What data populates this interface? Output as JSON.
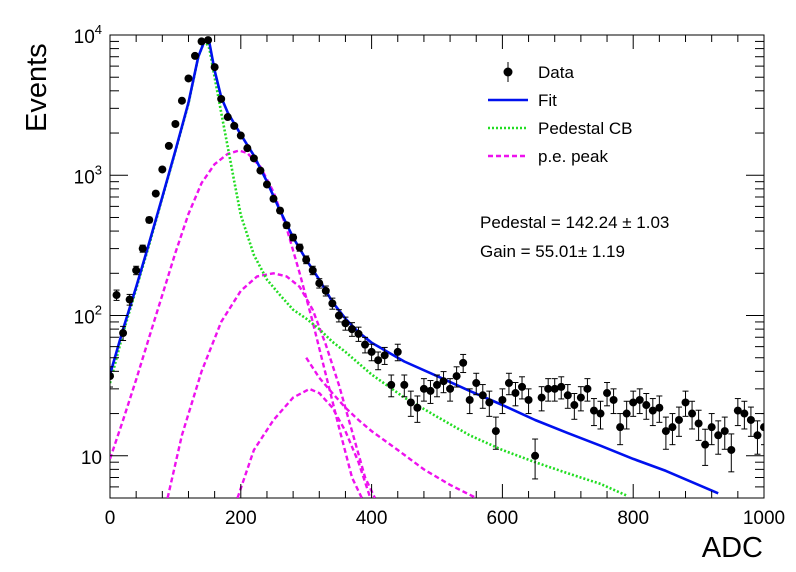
{
  "chart_data": {
    "type": "scatter",
    "title": "",
    "xlabel": "ADC",
    "ylabel": "Events",
    "xlim": [
      0,
      1000
    ],
    "ylim": [
      5,
      10000
    ],
    "y_scale": "log",
    "grid": false,
    "legend_position": "top-right",
    "x_ticks": [
      "0",
      "200",
      "400",
      "600",
      "800",
      "1000"
    ],
    "y_ticks": [
      {
        "value": 10,
        "mantissa": "10",
        "exponent": ""
      },
      {
        "value": 100,
        "mantissa": "10",
        "exponent": "2"
      },
      {
        "value": 1000,
        "mantissa": "10",
        "exponent": "3"
      },
      {
        "value": 10000,
        "mantissa": "10",
        "exponent": "4"
      }
    ],
    "legend": [
      {
        "label": "Data",
        "style": "marker",
        "color": "#000000"
      },
      {
        "label": "Fit",
        "style": "solid",
        "color": "#0011ee"
      },
      {
        "label": "Pedestal CB",
        "style": "dotted",
        "color": "#22dd22"
      },
      {
        "label": "p.e. peak",
        "style": "dashed",
        "color": "#ee11ee"
      }
    ],
    "annotations": [
      {
        "text": "Pedestal = 142.24 ± 1.03"
      },
      {
        "text": "Gain = 55.01± 1.19"
      }
    ],
    "series": [
      {
        "name": "Data",
        "kind": "points",
        "color": "#000000",
        "points": [
          [
            0,
            37
          ],
          [
            10,
            140
          ],
          [
            20,
            75
          ],
          [
            30,
            130
          ],
          [
            40,
            210
          ],
          [
            50,
            300
          ],
          [
            60,
            480
          ],
          [
            70,
            740
          ],
          [
            80,
            1100
          ],
          [
            90,
            1620
          ],
          [
            100,
            2320
          ],
          [
            110,
            3400
          ],
          [
            120,
            4900
          ],
          [
            130,
            7100
          ],
          [
            140,
            9000
          ],
          [
            150,
            9200
          ],
          [
            160,
            5900
          ],
          [
            170,
            3500
          ],
          [
            180,
            2600
          ],
          [
            190,
            2250
          ],
          [
            200,
            1920
          ],
          [
            210,
            1560
          ],
          [
            220,
            1320
          ],
          [
            230,
            1080
          ],
          [
            240,
            860
          ],
          [
            250,
            680
          ],
          [
            260,
            560
          ],
          [
            270,
            440
          ],
          [
            280,
            360
          ],
          [
            290,
            305
          ],
          [
            300,
            250
          ],
          [
            310,
            210
          ],
          [
            320,
            170
          ],
          [
            330,
            150
          ],
          [
            340,
            122
          ],
          [
            350,
            100
          ],
          [
            360,
            88
          ],
          [
            370,
            80
          ],
          [
            380,
            74
          ],
          [
            390,
            62
          ],
          [
            400,
            55
          ],
          [
            410,
            48
          ],
          [
            420,
            52
          ],
          [
            430,
            32
          ],
          [
            440,
            55
          ],
          [
            450,
            32
          ],
          [
            460,
            24
          ],
          [
            470,
            22
          ],
          [
            480,
            30
          ],
          [
            490,
            29
          ],
          [
            500,
            32
          ],
          [
            510,
            34
          ],
          [
            520,
            30
          ],
          [
            530,
            37
          ],
          [
            540,
            46
          ],
          [
            550,
            25
          ],
          [
            560,
            33
          ],
          [
            570,
            27
          ],
          [
            580,
            24
          ],
          [
            590,
            15
          ],
          [
            600,
            25
          ],
          [
            610,
            33
          ],
          [
            620,
            28
          ],
          [
            630,
            31
          ],
          [
            640,
            25
          ],
          [
            650,
            10
          ],
          [
            660,
            26
          ],
          [
            670,
            30
          ],
          [
            680,
            30
          ],
          [
            690,
            31
          ],
          [
            700,
            27
          ],
          [
            710,
            23
          ],
          [
            720,
            26
          ],
          [
            730,
            30
          ],
          [
            740,
            21
          ],
          [
            750,
            20
          ],
          [
            760,
            28
          ],
          [
            770,
            25
          ],
          [
            780,
            16
          ],
          [
            790,
            20
          ],
          [
            800,
            24
          ],
          [
            810,
            25
          ],
          [
            820,
            23
          ],
          [
            830,
            21
          ],
          [
            840,
            22
          ],
          [
            850,
            15
          ],
          [
            860,
            16
          ],
          [
            870,
            18
          ],
          [
            880,
            24
          ],
          [
            890,
            20
          ],
          [
            900,
            17
          ],
          [
            910,
            12
          ],
          [
            920,
            16
          ],
          [
            930,
            14
          ],
          [
            940,
            15
          ],
          [
            950,
            11
          ],
          [
            960,
            21
          ],
          [
            970,
            20
          ],
          [
            980,
            18
          ],
          [
            990,
            14
          ],
          [
            1000,
            16
          ]
        ]
      },
      {
        "name": "Fit",
        "kind": "line",
        "color": "#0011ee",
        "points": [
          [
            0,
            38
          ],
          [
            20,
            80
          ],
          [
            40,
            160
          ],
          [
            60,
            330
          ],
          [
            80,
            700
          ],
          [
            100,
            1500
          ],
          [
            120,
            3300
          ],
          [
            135,
            7000
          ],
          [
            145,
            9200
          ],
          [
            152,
            8800
          ],
          [
            160,
            5600
          ],
          [
            170,
            3600
          ],
          [
            180,
            2800
          ],
          [
            200,
            1950
          ],
          [
            220,
            1380
          ],
          [
            240,
            900
          ],
          [
            260,
            560
          ],
          [
            280,
            360
          ],
          [
            300,
            250
          ],
          [
            320,
            180
          ],
          [
            340,
            125
          ],
          [
            360,
            95
          ],
          [
            380,
            76
          ],
          [
            400,
            64
          ],
          [
            450,
            47
          ],
          [
            500,
            37
          ],
          [
            550,
            29
          ],
          [
            600,
            23
          ],
          [
            650,
            18
          ],
          [
            700,
            14.5
          ],
          [
            750,
            11.8
          ],
          [
            800,
            9.5
          ],
          [
            850,
            7.8
          ],
          [
            900,
            6.2
          ],
          [
            930,
            5.4
          ]
        ]
      },
      {
        "name": "Pedestal CB",
        "kind": "line",
        "color": "#22dd22",
        "points": [
          [
            0,
            33
          ],
          [
            20,
            75
          ],
          [
            40,
            155
          ],
          [
            60,
            320
          ],
          [
            80,
            690
          ],
          [
            100,
            1480
          ],
          [
            120,
            3250
          ],
          [
            135,
            7000
          ],
          [
            145,
            9200
          ],
          [
            152,
            8000
          ],
          [
            160,
            5000
          ],
          [
            170,
            2800
          ],
          [
            180,
            1600
          ],
          [
            190,
            900
          ],
          [
            200,
            520
          ],
          [
            220,
            270
          ],
          [
            240,
            180
          ],
          [
            260,
            140
          ],
          [
            280,
            110
          ],
          [
            300,
            95
          ],
          [
            320,
            80
          ],
          [
            340,
            65
          ],
          [
            360,
            55
          ],
          [
            400,
            38
          ],
          [
            450,
            26
          ],
          [
            500,
            19
          ],
          [
            550,
            14
          ],
          [
            600,
            11
          ],
          [
            650,
            9
          ],
          [
            700,
            7.5
          ],
          [
            750,
            6.3
          ],
          [
            790,
            5.2
          ]
        ]
      },
      {
        "name": "p.e. peak 1",
        "kind": "line",
        "color": "#ee11ee",
        "points": [
          [
            0,
            9.5
          ],
          [
            20,
            18
          ],
          [
            40,
            35
          ],
          [
            60,
            70
          ],
          [
            80,
            140
          ],
          [
            100,
            280
          ],
          [
            120,
            530
          ],
          [
            140,
            880
          ],
          [
            160,
            1200
          ],
          [
            180,
            1420
          ],
          [
            197,
            1500
          ],
          [
            210,
            1440
          ],
          [
            230,
            1150
          ],
          [
            250,
            760
          ],
          [
            270,
            420
          ],
          [
            290,
            200
          ],
          [
            310,
            90
          ],
          [
            330,
            38
          ],
          [
            350,
            16
          ],
          [
            370,
            7
          ],
          [
            385,
            5
          ]
        ]
      },
      {
        "name": "p.e. peak 2",
        "kind": "line",
        "color": "#ee11ee",
        "points": [
          [
            88,
            5
          ],
          [
            110,
            14
          ],
          [
            140,
            40
          ],
          [
            170,
            90
          ],
          [
            200,
            150
          ],
          [
            225,
            190
          ],
          [
            250,
            200
          ],
          [
            270,
            190
          ],
          [
            290,
            160
          ],
          [
            310,
            110
          ],
          [
            330,
            62
          ],
          [
            350,
            32
          ],
          [
            370,
            15
          ],
          [
            390,
            7
          ],
          [
            405,
            5
          ]
        ]
      },
      {
        "name": "p.e. peak 3",
        "kind": "line",
        "color": "#ee11ee",
        "points": [
          [
            195,
            5
          ],
          [
            220,
            11
          ],
          [
            250,
            18
          ],
          [
            280,
            26
          ],
          [
            305,
            30
          ],
          [
            320,
            28
          ],
          [
            340,
            22
          ],
          [
            360,
            15
          ],
          [
            380,
            9
          ],
          [
            398,
            5
          ]
        ]
      },
      {
        "name": "p.e. tail",
        "kind": "line",
        "color": "#ee11ee",
        "points": [
          [
            300,
            50
          ],
          [
            320,
            36
          ],
          [
            340,
            28
          ],
          [
            360,
            22
          ],
          [
            380,
            18
          ],
          [
            400,
            15
          ],
          [
            440,
            11
          ],
          [
            480,
            8
          ],
          [
            520,
            6.2
          ],
          [
            560,
            5
          ]
        ]
      }
    ]
  }
}
